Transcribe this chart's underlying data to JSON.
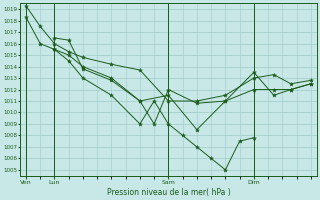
{
  "title": "Pression niveau de la mer( hPa )",
  "ylabel_values": [
    1005,
    1006,
    1007,
    1008,
    1009,
    1010,
    1011,
    1012,
    1013,
    1014,
    1015,
    1016,
    1017,
    1018,
    1019
  ],
  "ylim": [
    1004.5,
    1019.5
  ],
  "bg_color": "#c8e8e8",
  "grid_color": "#a0c8c8",
  "line_color": "#1a5c1a",
  "marker_color": "#1a5c1a",
  "xtick_labels": [
    "Ven",
    "Lun",
    "Sam",
    "Dim"
  ],
  "xtick_positions": [
    0,
    1,
    5,
    8
  ],
  "vlines": [
    0,
    1,
    5,
    8
  ],
  "xlim": [
    -0.2,
    10.2
  ],
  "series": [
    [
      0,
      1019.3,
      0.5,
      1017.5,
      1,
      1016.0,
      1.5,
      1015.3,
      2,
      1014.8,
      3,
      1014.2,
      4,
      1013.7,
      5,
      1011.0,
      6,
      1011.0,
      7,
      1011.5,
      8,
      1013.0,
      8.7,
      1013.3,
      9.3,
      1012.5,
      10,
      1012.8
    ],
    [
      0,
      1018.3,
      0.5,
      1016.0,
      1,
      1015.5,
      1.5,
      1015.0,
      2,
      1014.0,
      3,
      1013.0,
      4,
      1011.0,
      5,
      1011.5,
      6,
      1008.5,
      7,
      1011.0,
      8,
      1013.5,
      8.7,
      1011.5,
      9.3,
      1012.0,
      10,
      1012.5
    ],
    [
      1,
      1016.5,
      1.5,
      1016.3,
      2,
      1013.8,
      3,
      1012.8,
      4,
      1011.0,
      4.5,
      1009.0,
      5,
      1012.0,
      6,
      1010.8,
      7,
      1011.0,
      8,
      1012.0,
      8.7,
      1012.0,
      9.3,
      1012.0,
      10,
      1012.5
    ],
    [
      1,
      1015.5,
      1.5,
      1014.5,
      2,
      1013.0,
      3,
      1011.5,
      4,
      1009.0,
      4.5,
      1011.0,
      5,
      1009.0,
      5.5,
      1008.0,
      6,
      1007.0,
      6.5,
      1006.0,
      7,
      1005.0,
      7.5,
      1007.5,
      8,
      1007.8
    ]
  ]
}
